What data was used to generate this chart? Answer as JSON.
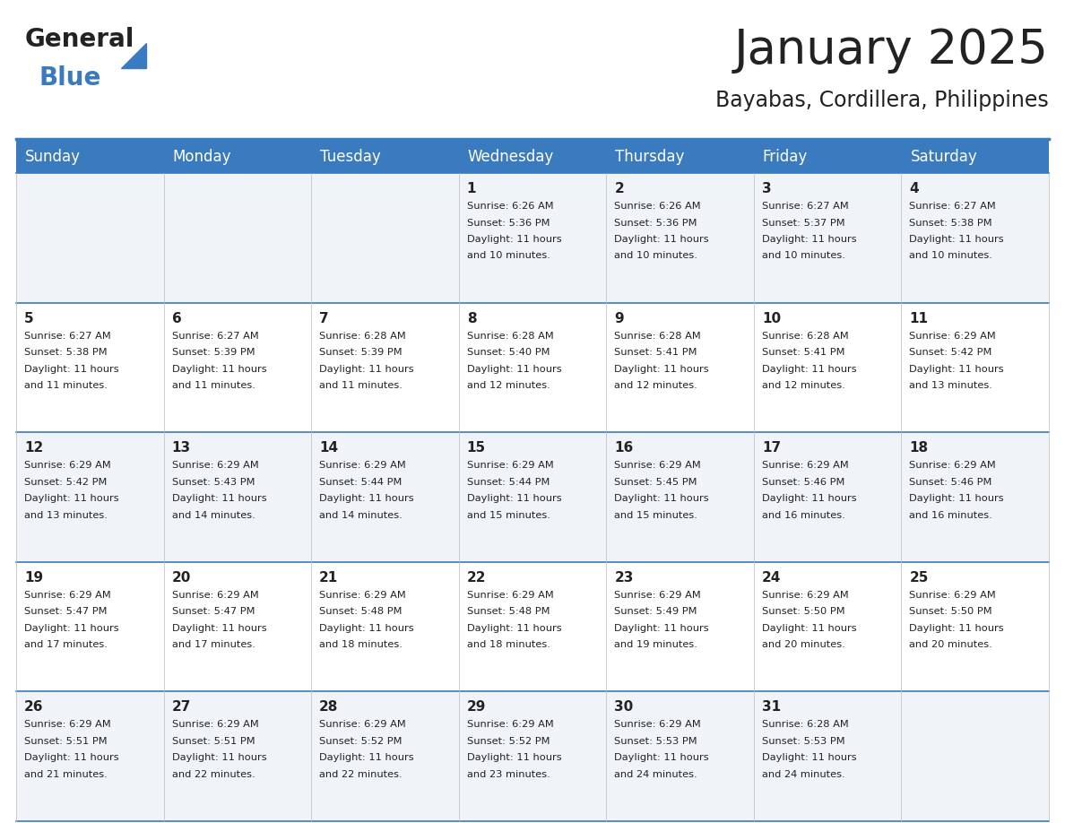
{
  "title": "January 2025",
  "subtitle": "Bayabas, Cordillera, Philippines",
  "header_color": "#3a7abf",
  "header_text_color": "#ffffff",
  "weekdays": [
    "Sunday",
    "Monday",
    "Tuesday",
    "Wednesday",
    "Thursday",
    "Friday",
    "Saturday"
  ],
  "alt_row_color": "#f0f4f8",
  "white_color": "#ffffff",
  "text_color": "#222222",
  "line_color": "#3a7abf",
  "days": [
    {
      "day": 1,
      "col": 3,
      "row": 0,
      "sunrise": "6:26 AM",
      "sunset": "5:36 PM",
      "daylight": "11 hours and 10 minutes."
    },
    {
      "day": 2,
      "col": 4,
      "row": 0,
      "sunrise": "6:26 AM",
      "sunset": "5:36 PM",
      "daylight": "11 hours and 10 minutes."
    },
    {
      "day": 3,
      "col": 5,
      "row": 0,
      "sunrise": "6:27 AM",
      "sunset": "5:37 PM",
      "daylight": "11 hours and 10 minutes."
    },
    {
      "day": 4,
      "col": 6,
      "row": 0,
      "sunrise": "6:27 AM",
      "sunset": "5:38 PM",
      "daylight": "11 hours and 10 minutes."
    },
    {
      "day": 5,
      "col": 0,
      "row": 1,
      "sunrise": "6:27 AM",
      "sunset": "5:38 PM",
      "daylight": "11 hours and 11 minutes."
    },
    {
      "day": 6,
      "col": 1,
      "row": 1,
      "sunrise": "6:27 AM",
      "sunset": "5:39 PM",
      "daylight": "11 hours and 11 minutes."
    },
    {
      "day": 7,
      "col": 2,
      "row": 1,
      "sunrise": "6:28 AM",
      "sunset": "5:39 PM",
      "daylight": "11 hours and 11 minutes."
    },
    {
      "day": 8,
      "col": 3,
      "row": 1,
      "sunrise": "6:28 AM",
      "sunset": "5:40 PM",
      "daylight": "11 hours and 12 minutes."
    },
    {
      "day": 9,
      "col": 4,
      "row": 1,
      "sunrise": "6:28 AM",
      "sunset": "5:41 PM",
      "daylight": "11 hours and 12 minutes."
    },
    {
      "day": 10,
      "col": 5,
      "row": 1,
      "sunrise": "6:28 AM",
      "sunset": "5:41 PM",
      "daylight": "11 hours and 12 minutes."
    },
    {
      "day": 11,
      "col": 6,
      "row": 1,
      "sunrise": "6:29 AM",
      "sunset": "5:42 PM",
      "daylight": "11 hours and 13 minutes."
    },
    {
      "day": 12,
      "col": 0,
      "row": 2,
      "sunrise": "6:29 AM",
      "sunset": "5:42 PM",
      "daylight": "11 hours and 13 minutes."
    },
    {
      "day": 13,
      "col": 1,
      "row": 2,
      "sunrise": "6:29 AM",
      "sunset": "5:43 PM",
      "daylight": "11 hours and 14 minutes."
    },
    {
      "day": 14,
      "col": 2,
      "row": 2,
      "sunrise": "6:29 AM",
      "sunset": "5:44 PM",
      "daylight": "11 hours and 14 minutes."
    },
    {
      "day": 15,
      "col": 3,
      "row": 2,
      "sunrise": "6:29 AM",
      "sunset": "5:44 PM",
      "daylight": "11 hours and 15 minutes."
    },
    {
      "day": 16,
      "col": 4,
      "row": 2,
      "sunrise": "6:29 AM",
      "sunset": "5:45 PM",
      "daylight": "11 hours and 15 minutes."
    },
    {
      "day": 17,
      "col": 5,
      "row": 2,
      "sunrise": "6:29 AM",
      "sunset": "5:46 PM",
      "daylight": "11 hours and 16 minutes."
    },
    {
      "day": 18,
      "col": 6,
      "row": 2,
      "sunrise": "6:29 AM",
      "sunset": "5:46 PM",
      "daylight": "11 hours and 16 minutes."
    },
    {
      "day": 19,
      "col": 0,
      "row": 3,
      "sunrise": "6:29 AM",
      "sunset": "5:47 PM",
      "daylight": "11 hours and 17 minutes."
    },
    {
      "day": 20,
      "col": 1,
      "row": 3,
      "sunrise": "6:29 AM",
      "sunset": "5:47 PM",
      "daylight": "11 hours and 17 minutes."
    },
    {
      "day": 21,
      "col": 2,
      "row": 3,
      "sunrise": "6:29 AM",
      "sunset": "5:48 PM",
      "daylight": "11 hours and 18 minutes."
    },
    {
      "day": 22,
      "col": 3,
      "row": 3,
      "sunrise": "6:29 AM",
      "sunset": "5:48 PM",
      "daylight": "11 hours and 18 minutes."
    },
    {
      "day": 23,
      "col": 4,
      "row": 3,
      "sunrise": "6:29 AM",
      "sunset": "5:49 PM",
      "daylight": "11 hours and 19 minutes."
    },
    {
      "day": 24,
      "col": 5,
      "row": 3,
      "sunrise": "6:29 AM",
      "sunset": "5:50 PM",
      "daylight": "11 hours and 20 minutes."
    },
    {
      "day": 25,
      "col": 6,
      "row": 3,
      "sunrise": "6:29 AM",
      "sunset": "5:50 PM",
      "daylight": "11 hours and 20 minutes."
    },
    {
      "day": 26,
      "col": 0,
      "row": 4,
      "sunrise": "6:29 AM",
      "sunset": "5:51 PM",
      "daylight": "11 hours and 21 minutes."
    },
    {
      "day": 27,
      "col": 1,
      "row": 4,
      "sunrise": "6:29 AM",
      "sunset": "5:51 PM",
      "daylight": "11 hours and 22 minutes."
    },
    {
      "day": 28,
      "col": 2,
      "row": 4,
      "sunrise": "6:29 AM",
      "sunset": "5:52 PM",
      "daylight": "11 hours and 22 minutes."
    },
    {
      "day": 29,
      "col": 3,
      "row": 4,
      "sunrise": "6:29 AM",
      "sunset": "5:52 PM",
      "daylight": "11 hours and 23 minutes."
    },
    {
      "day": 30,
      "col": 4,
      "row": 4,
      "sunrise": "6:29 AM",
      "sunset": "5:53 PM",
      "daylight": "11 hours and 24 minutes."
    },
    {
      "day": 31,
      "col": 5,
      "row": 4,
      "sunrise": "6:28 AM",
      "sunset": "5:53 PM",
      "daylight": "11 hours and 24 minutes."
    }
  ],
  "logo_color_general": "#222222",
  "logo_color_blue": "#3a7abf",
  "title_fontsize": 38,
  "subtitle_fontsize": 17,
  "day_number_fontsize": 11,
  "day_text_fontsize": 8.2,
  "header_fontsize": 12
}
